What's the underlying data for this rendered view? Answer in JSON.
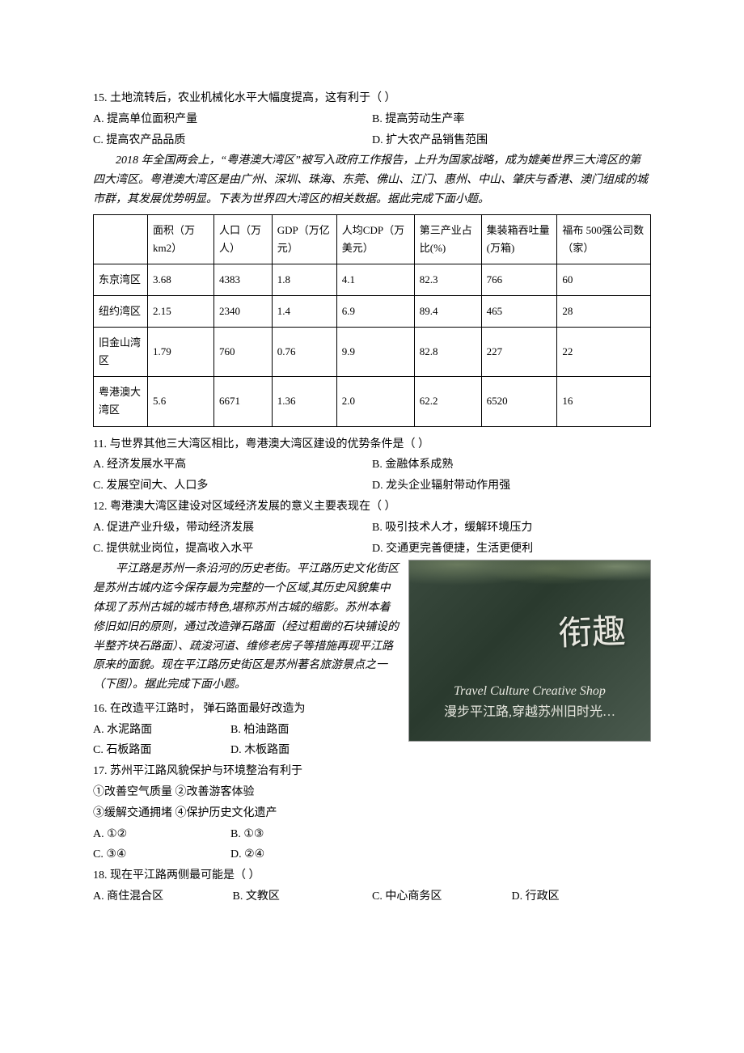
{
  "q15": {
    "stem": "15. 土地流转后，农业机械化水平大幅度提高，这有利于（    ）",
    "a": "A. 提高单位面积产量",
    "b": "B. 提高劳动生产率",
    "c": "C. 提高农产品品质",
    "d": "D. 扩大农产品销售范围"
  },
  "passage1": "2018 年全国两会上，“粤港澳大湾区”被写入政府工作报告，上升为国家战略，成为媲美世界三大湾区的第四大湾区。粤港澳大湾区是由广州、深圳、珠海、东莞、佛山、江门、惠州、中山、肇庆与香港、澳门组成的城市群，其发展优势明显。下表为世界四大湾区的相关数据。据此完成下面小题。",
  "table": {
    "columns": [
      "",
      "面积（万km2）",
      "人口（万人）",
      "GDP（万亿元）",
      "人均CDP（万美元）",
      "第三产业占比(%)",
      "集装箱吞吐量(万箱)",
      "福布 500强公司数（家）"
    ],
    "rows": [
      [
        "东京湾区",
        "3.68",
        "4383",
        "1.8",
        "4.1",
        "82.3",
        "766",
        "60"
      ],
      [
        "纽约湾区",
        "2.15",
        "2340",
        "1.4",
        "6.9",
        "89.4",
        "465",
        "28"
      ],
      [
        "旧金山湾区",
        "1.79",
        "760",
        "0.76",
        "9.9",
        "82.8",
        "227",
        "22"
      ],
      [
        "粤港澳大湾区",
        "5.6",
        "6671",
        "1.36",
        "2.0",
        "62.2",
        "6520",
        "16"
      ]
    ]
  },
  "q11": {
    "stem": "11. 与世界其他三大湾区相比，粤港澳大湾区建设的优势条件是（    ）",
    "a": "A. 经济发展水平高",
    "b": "B. 金融体系成熟",
    "c": "C. 发展空间大、人口多",
    "d": "D. 龙头企业辐射带动作用强"
  },
  "q12": {
    "stem": "12. 粤港澳大湾区建设对区域经济发展的意义主要表现在（    ）",
    "a": "A. 促进产业升级，带动经济发展",
    "b": "B. 吸引技术人才，缓解环境压力",
    "c": "C. 提供就业岗位，提高收入水平",
    "d": "D. 交通更完善便捷，生活更便利"
  },
  "passage2": "平江路是苏州一条沿河的历史老街。平江路历史文化街区是苏州古城内迄今保存最为完整的一个区域,其历史风貌集中体现了苏州古城的城市特色,堪称苏州古城的缩影。苏州本着修旧如旧的原则，通过改造弹石路面（经过粗凿的石块铺设的半整齐块石路面）、疏浚河道、维修老房子等措施再现平江路原来的面貌。现在平江路历史街区是苏州著名旅游景点之一（下图）。据此完成下面小题。",
  "photo": {
    "cn": "衔趣",
    "en": "Travel Culture Creative Shop",
    "sub": "漫步平江路,穿越苏州旧时光…"
  },
  "q16": {
    "stem": "16. 在改造平江路时，  弹石路面最好改造为",
    "a": "A. 水泥路面",
    "b": "B. 柏油路面",
    "c": "C. 石板路面",
    "d": "D. 木板路面"
  },
  "q17": {
    "stem": "17. 苏州平江路风貌保护与环境整治有利于",
    "opts_l1": "①改善空气质量   ②改善游客体验",
    "opts_l2": "③缓解交通拥堵   ④保护历史文化遗产",
    "a": "A. ①②",
    "b": "B. ①③",
    "c": "C. ③④",
    "d": "D. ②④"
  },
  "q18": {
    "stem": "18. 现在平江路两侧最可能是（    ）",
    "a": "A. 商住混合区",
    "b": "B. 文教区",
    "c": "C. 中心商务区",
    "d": "D. 行政区"
  }
}
